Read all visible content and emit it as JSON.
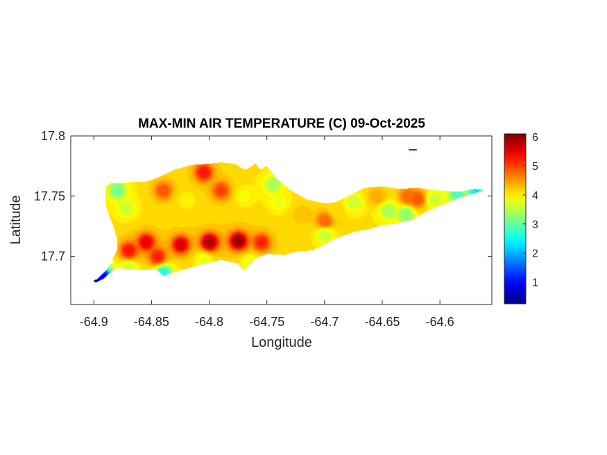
{
  "chart_data": {
    "type": "heatmap",
    "title": "MAX-MIN AIR TEMPERATURE (C) 09-Oct-2025",
    "xlabel": "Longitude",
    "ylabel": "Latitude",
    "xlim": [
      -64.92,
      -64.555
    ],
    "ylim": [
      17.66,
      17.8
    ],
    "xticks": [
      -64.9,
      -64.85,
      -64.8,
      -64.75,
      -64.7,
      -64.65,
      -64.6
    ],
    "xtick_labels": [
      "-64.9",
      "-64.85",
      "-64.8",
      "-64.75",
      "-64.7",
      "-64.65",
      "-64.6"
    ],
    "yticks": [
      17.7,
      17.75,
      17.8
    ],
    "ytick_labels": [
      "17.7",
      "17.75",
      "17.8"
    ],
    "colorbar": {
      "colormap": "jet",
      "range": [
        0.25,
        6.1
      ],
      "ticks": [
        1,
        2,
        3,
        4,
        5,
        6
      ],
      "tick_labels": [
        "1",
        "2",
        "3",
        "4",
        "5",
        "6"
      ]
    },
    "island_outline": [
      [
        -64.88,
        17.69
      ],
      [
        -64.86,
        17.689
      ],
      [
        -64.845,
        17.689
      ],
      [
        -64.84,
        17.684
      ],
      [
        -64.83,
        17.687
      ],
      [
        -64.815,
        17.691
      ],
      [
        -64.8,
        17.695
      ],
      [
        -64.79,
        17.697
      ],
      [
        -64.775,
        17.694
      ],
      [
        -64.77,
        17.688
      ],
      [
        -64.76,
        17.698
      ],
      [
        -64.75,
        17.702
      ],
      [
        -64.735,
        17.701
      ],
      [
        -64.725,
        17.704
      ],
      [
        -64.71,
        17.705
      ],
      [
        -64.7,
        17.71
      ],
      [
        -64.69,
        17.715
      ],
      [
        -64.675,
        17.72
      ],
      [
        -64.66,
        17.723
      ],
      [
        -64.65,
        17.726
      ],
      [
        -64.64,
        17.727
      ],
      [
        -64.625,
        17.73
      ],
      [
        -64.61,
        17.738
      ],
      [
        -64.595,
        17.744
      ],
      [
        -64.582,
        17.749
      ],
      [
        -64.568,
        17.753
      ],
      [
        -64.562,
        17.755
      ],
      [
        -64.57,
        17.756
      ],
      [
        -64.58,
        17.754
      ],
      [
        -64.59,
        17.754
      ],
      [
        -64.605,
        17.755
      ],
      [
        -64.62,
        17.757
      ],
      [
        -64.635,
        17.756
      ],
      [
        -64.65,
        17.758
      ],
      [
        -64.665,
        17.757
      ],
      [
        -64.68,
        17.75
      ],
      [
        -64.69,
        17.745
      ],
      [
        -64.7,
        17.744
      ],
      [
        -64.715,
        17.747
      ],
      [
        -64.73,
        17.755
      ],
      [
        -64.742,
        17.765
      ],
      [
        -64.75,
        17.775
      ],
      [
        -64.755,
        17.772
      ],
      [
        -64.76,
        17.777
      ],
      [
        -64.768,
        17.772
      ],
      [
        -64.773,
        17.774
      ],
      [
        -64.778,
        17.777
      ],
      [
        -64.79,
        17.778
      ],
      [
        -64.8,
        17.777
      ],
      [
        -64.815,
        17.776
      ],
      [
        -64.83,
        17.772
      ],
      [
        -64.845,
        17.765
      ],
      [
        -64.855,
        17.762
      ],
      [
        -64.865,
        17.762
      ],
      [
        -64.875,
        17.761
      ],
      [
        -64.885,
        17.761
      ],
      [
        -64.89,
        17.758
      ],
      [
        -64.89,
        17.745
      ],
      [
        -64.888,
        17.737
      ],
      [
        -64.883,
        17.725
      ],
      [
        -64.88,
        17.715
      ],
      [
        -64.88,
        17.705
      ],
      [
        -64.884,
        17.697
      ]
    ],
    "west_spit": [
      [
        -64.884,
        17.695
      ],
      [
        -64.89,
        17.688
      ],
      [
        -64.897,
        17.681
      ],
      [
        -64.9,
        17.68
      ],
      [
        -64.899,
        17.678
      ],
      [
        -64.892,
        17.681
      ],
      [
        -64.884,
        17.688
      ],
      [
        -64.88,
        17.692
      ]
    ],
    "east_islet": [
      [
        -64.627,
        17.789
      ],
      [
        -64.62,
        17.789
      ],
      [
        -64.62,
        17.788
      ],
      [
        -64.627,
        17.788
      ]
    ],
    "field_base_value": 4.1,
    "field_features": [
      {
        "lon": -64.775,
        "lat": 17.713,
        "value": 6.0
      },
      {
        "lon": -64.8,
        "lat": 17.712,
        "value": 5.9
      },
      {
        "lon": -64.825,
        "lat": 17.71,
        "value": 5.6
      },
      {
        "lon": -64.855,
        "lat": 17.712,
        "value": 5.5
      },
      {
        "lon": -64.87,
        "lat": 17.705,
        "value": 5.3
      },
      {
        "lon": -64.845,
        "lat": 17.7,
        "value": 5.2
      },
      {
        "lon": -64.805,
        "lat": 17.77,
        "value": 5.3
      },
      {
        "lon": -64.79,
        "lat": 17.755,
        "value": 5.0
      },
      {
        "lon": -64.84,
        "lat": 17.755,
        "value": 4.9
      },
      {
        "lon": -64.755,
        "lat": 17.712,
        "value": 5.2
      },
      {
        "lon": -64.88,
        "lat": 17.755,
        "value": 3.1
      },
      {
        "lon": -64.872,
        "lat": 17.74,
        "value": 3.6
      },
      {
        "lon": -64.82,
        "lat": 17.747,
        "value": 4.0
      },
      {
        "lon": -64.77,
        "lat": 17.75,
        "value": 3.9
      },
      {
        "lon": -64.745,
        "lat": 17.76,
        "value": 3.4
      },
      {
        "lon": -64.74,
        "lat": 17.745,
        "value": 3.8
      },
      {
        "lon": -64.72,
        "lat": 17.735,
        "value": 4.3
      },
      {
        "lon": -64.7,
        "lat": 17.73,
        "value": 4.8
      },
      {
        "lon": -64.69,
        "lat": 17.738,
        "value": 4.1
      },
      {
        "lon": -64.7,
        "lat": 17.718,
        "value": 3.6
      },
      {
        "lon": -64.675,
        "lat": 17.745,
        "value": 3.6
      },
      {
        "lon": -64.655,
        "lat": 17.75,
        "value": 4.4
      },
      {
        "lon": -64.645,
        "lat": 17.738,
        "value": 3.4
      },
      {
        "lon": -64.63,
        "lat": 17.735,
        "value": 3.2
      },
      {
        "lon": -64.628,
        "lat": 17.75,
        "value": 4.8
      },
      {
        "lon": -64.62,
        "lat": 17.748,
        "value": 4.9
      },
      {
        "lon": -64.605,
        "lat": 17.748,
        "value": 3.6
      },
      {
        "lon": -64.585,
        "lat": 17.752,
        "value": 2.9
      },
      {
        "lon": -64.568,
        "lat": 17.754,
        "value": 2.3
      },
      {
        "lon": -64.84,
        "lat": 17.686,
        "value": 2.6
      },
      {
        "lon": -64.87,
        "lat": 17.69,
        "value": 3.6
      },
      {
        "lon": -64.805,
        "lat": 17.697,
        "value": 3.8
      },
      {
        "lon": -64.765,
        "lat": 17.695,
        "value": 3.8
      },
      {
        "lon": -64.892,
        "lat": 17.683,
        "value": 1.0
      },
      {
        "lon": -64.899,
        "lat": 17.679,
        "value": 0.3
      }
    ],
    "east_islet_value": 0.4
  }
}
